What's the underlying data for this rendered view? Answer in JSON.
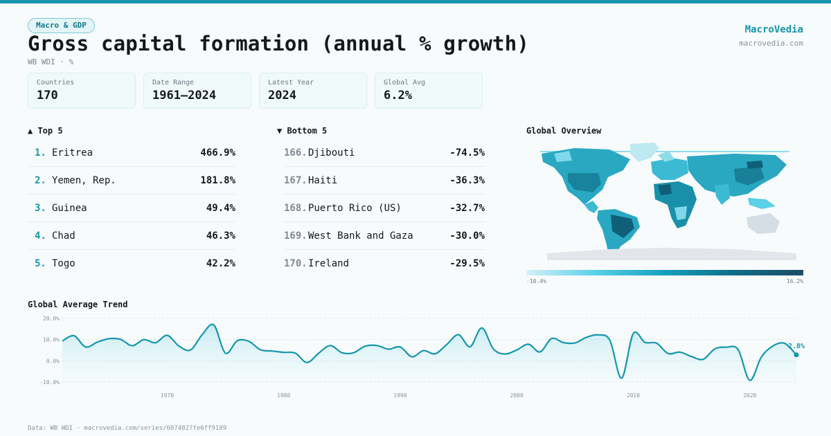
{
  "header": {
    "tag": "Macro & GDP",
    "title": "Gross capital formation (annual % growth)",
    "subtitle": "WB WDI · %",
    "brand": "MacroVedia",
    "brand_url": "macrovedia.com"
  },
  "cards": [
    {
      "label": "Countries",
      "value": "170"
    },
    {
      "label": "Date Range",
      "value": "1961–2024"
    },
    {
      "label": "Latest Year",
      "value": "2024"
    },
    {
      "label": "Global Avg",
      "value": "6.2%"
    }
  ],
  "top": {
    "heading": "▲ Top 5",
    "items": [
      {
        "rank": "1.",
        "name": "Eritrea",
        "value": "466.9%"
      },
      {
        "rank": "2.",
        "name": "Yemen, Rep.",
        "value": "181.8%"
      },
      {
        "rank": "3.",
        "name": "Guinea",
        "value": "49.4%"
      },
      {
        "rank": "4.",
        "name": "Chad",
        "value": "46.3%"
      },
      {
        "rank": "5.",
        "name": "Togo",
        "value": "42.2%"
      }
    ]
  },
  "bottom": {
    "heading": "▼ Bottom 5",
    "items": [
      {
        "rank": "166.",
        "name": "Djibouti",
        "value": "-74.5%"
      },
      {
        "rank": "167.",
        "name": "Haiti",
        "value": "-36.3%"
      },
      {
        "rank": "168.",
        "name": "Puerto Rico (US)",
        "value": "-32.7%"
      },
      {
        "rank": "169.",
        "name": "West Bank and Gaza",
        "value": "-30.0%"
      },
      {
        "rank": "170.",
        "name": "Ireland",
        "value": "-29.5%"
      }
    ]
  },
  "map": {
    "title": "Global Overview",
    "legend_min": "-10.4%",
    "legend_max": "16.2%",
    "colors": [
      "#d4f1f8",
      "#5bd0e6",
      "#15a0bd",
      "#0f6d86",
      "#1d4c66"
    ]
  },
  "chart_data": {
    "type": "line",
    "title": "Global Average Trend",
    "xlim": [
      1961,
      2024
    ],
    "ylim": [
      -10,
      20
    ],
    "y_ticks": [
      "20.0%",
      "10.0%",
      "0.0%",
      "-10.0%"
    ],
    "y_tick_values": [
      20,
      10,
      0,
      -10
    ],
    "x_ticks": [
      "1970",
      "1980",
      "1990",
      "2000",
      "2010",
      "2020"
    ],
    "x_tick_values": [
      1970,
      1980,
      1990,
      2000,
      2010,
      2020
    ],
    "last_label": "2.8%",
    "series": [
      {
        "x": [
          1961,
          1962,
          1963,
          1964,
          1965,
          1966,
          1967,
          1968,
          1969,
          1970,
          1971,
          1972,
          1973,
          1974,
          1975,
          1976,
          1977,
          1978,
          1979,
          1980,
          1981,
          1982,
          1983,
          1984,
          1985,
          1986,
          1987,
          1988,
          1989,
          1990,
          1991,
          1992,
          1993,
          1994,
          1995,
          1996,
          1997,
          1998,
          1999,
          2000,
          2001,
          2002,
          2003,
          2004,
          2005,
          2006,
          2007,
          2008,
          2009,
          2010,
          2011,
          2012,
          2013,
          2014,
          2015,
          2016,
          2017,
          2018,
          2019,
          2020,
          2021,
          2022,
          2023,
          2024
        ],
        "values": [
          9.3,
          11.8,
          6.5,
          8.8,
          10.4,
          10.1,
          7.1,
          10.0,
          8.5,
          12.0,
          7.0,
          5.1,
          12.3,
          16.9,
          3.6,
          9.4,
          9.2,
          5.2,
          4.6,
          4.0,
          3.6,
          -0.8,
          3.6,
          7.2,
          3.8,
          3.8,
          6.9,
          7.2,
          5.5,
          6.5,
          1.9,
          4.8,
          3.3,
          7.7,
          12.3,
          6.6,
          15.5,
          5.6,
          3.2,
          5.1,
          7.8,
          4.2,
          10.5,
          8.6,
          8.4,
          11.1,
          12.2,
          9.6,
          -8.2,
          12.8,
          8.7,
          8.3,
          3.4,
          4.1,
          2.0,
          0.7,
          5.6,
          6.4,
          5.3,
          -9.2,
          1.8,
          7.0,
          8.2,
          2.8
        ],
        "color": "#1596ad"
      }
    ]
  },
  "footer": "Data: WB WDI · macrovedia.com/series/6074027fe6ff9189"
}
